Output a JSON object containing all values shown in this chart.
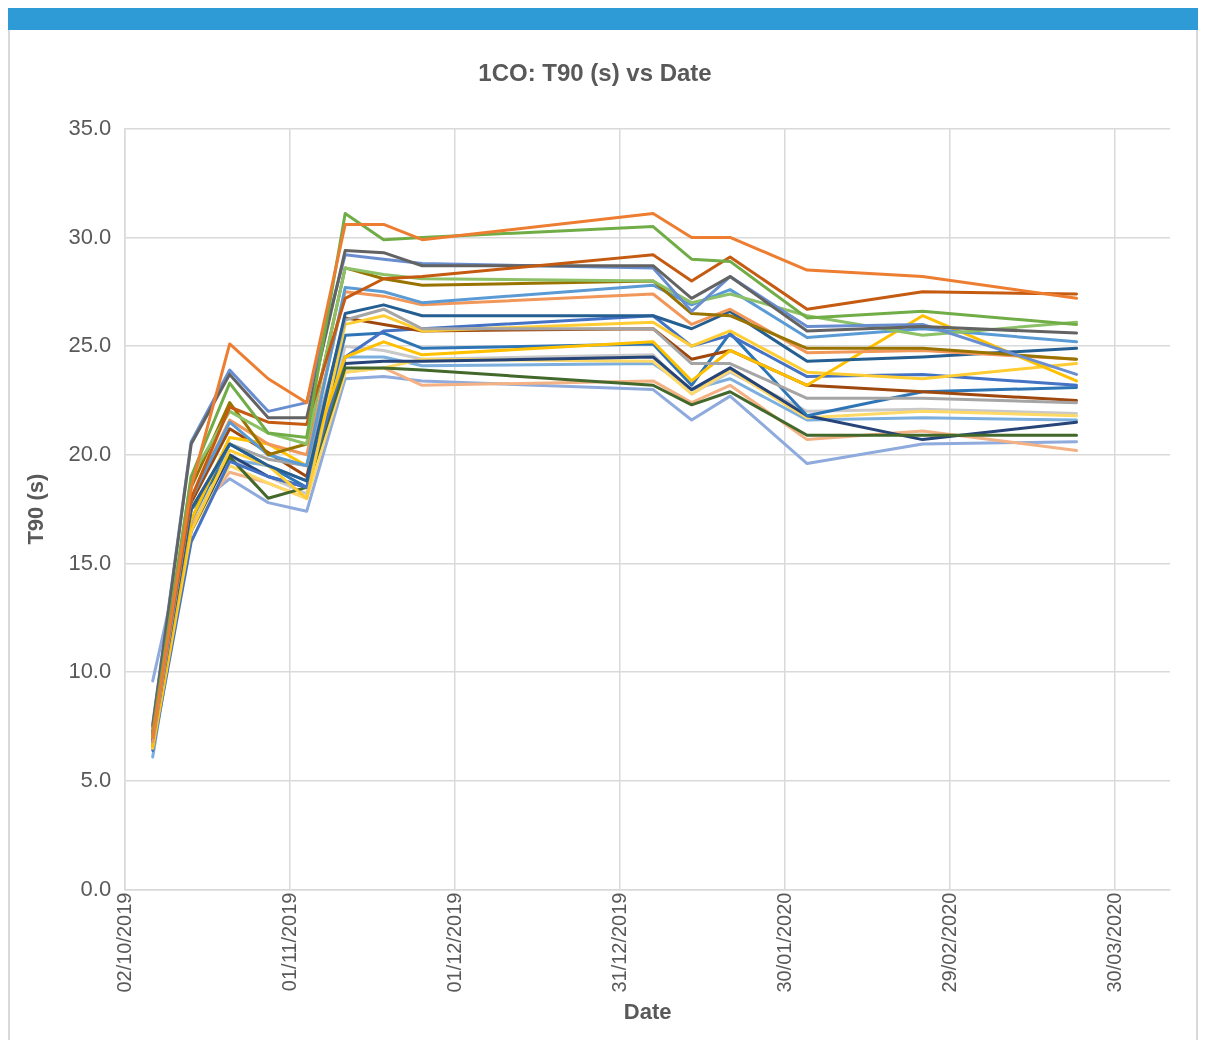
{
  "chart_data": {
    "type": "line",
    "title": "1CO: T90 (s) vs Date",
    "xlabel": "Date",
    "ylabel": "T90 (s)",
    "x": [
      "2019-10-07",
      "2019-10-14",
      "2019-10-21",
      "2019-10-28",
      "2019-11-04",
      "2019-11-11",
      "2019-11-18",
      "2019-11-25",
      "2020-01-06",
      "2020-01-13",
      "2020-01-20",
      "2020-02-03",
      "2020-02-24",
      "2020-03-23"
    ],
    "xlim": [
      "2019-10-02",
      "2020-04-09"
    ],
    "xticks": [
      {
        "value": "2019-10-02",
        "label": "02/10/2019"
      },
      {
        "value": "2019-11-01",
        "label": "01/11/2019"
      },
      {
        "value": "2019-12-01",
        "label": "01/12/2019"
      },
      {
        "value": "2019-12-31",
        "label": "31/12/2019"
      },
      {
        "value": "2020-01-30",
        "label": "30/01/2020"
      },
      {
        "value": "2020-02-29",
        "label": "29/02/2020"
      },
      {
        "value": "2020-03-30",
        "label": "30/03/2020"
      }
    ],
    "ylim": [
      0,
      35
    ],
    "yticks": [
      {
        "value": 0,
        "label": "0.0"
      },
      {
        "value": 5,
        "label": "5.0"
      },
      {
        "value": 10,
        "label": "10.0"
      },
      {
        "value": 15,
        "label": "15.0"
      },
      {
        "value": 20,
        "label": "20.0"
      },
      {
        "value": 25,
        "label": "25.0"
      },
      {
        "value": 30,
        "label": "30.0"
      },
      {
        "value": 35,
        "label": "35.0"
      }
    ],
    "grid": true,
    "legend": false,
    "marker": "none",
    "line_style": "solid",
    "series": [
      {
        "color": "#ed7d31",
        "values": [
          7.0,
          18.5,
          25.1,
          23.5,
          22.4,
          30.6,
          30.6,
          29.9,
          31.1,
          30.0,
          30.0,
          28.5,
          28.2,
          27.2
        ]
      },
      {
        "color": "#70ad47",
        "values": [
          7.2,
          19.0,
          23.3,
          21.0,
          20.8,
          31.1,
          29.9,
          30.0,
          30.5,
          29.0,
          28.9,
          26.3,
          26.6,
          26.0
        ]
      },
      {
        "color": "#c55a11",
        "values": [
          7.3,
          18.0,
          22.2,
          21.5,
          21.4,
          27.2,
          28.1,
          28.2,
          29.2,
          28.0,
          29.1,
          26.7,
          27.5,
          27.4
        ]
      },
      {
        "color": "#636363",
        "values": [
          7.5,
          20.5,
          23.7,
          21.7,
          21.7,
          29.4,
          29.3,
          28.7,
          28.7,
          27.2,
          28.2,
          25.7,
          25.9,
          25.6
        ]
      },
      {
        "color": "#698ed0",
        "values": [
          7.6,
          20.6,
          23.9,
          22.0,
          22.4,
          29.2,
          29.0,
          28.8,
          28.6,
          26.6,
          28.2,
          25.9,
          26.0,
          23.7
        ]
      },
      {
        "color": "#8cc168",
        "values": [
          7.0,
          19.0,
          22.0,
          21.0,
          20.5,
          28.6,
          28.3,
          28.1,
          28.0,
          27.0,
          27.4,
          26.4,
          25.5,
          26.1
        ]
      },
      {
        "color": "#997300",
        "values": [
          7.2,
          18.5,
          22.4,
          20.0,
          20.5,
          28.6,
          28.1,
          27.8,
          28.0,
          26.5,
          26.4,
          24.9,
          24.9,
          24.4
        ]
      },
      {
        "color": "#5b9bd5",
        "values": [
          7.0,
          18.0,
          21.5,
          20.0,
          19.5,
          27.7,
          27.5,
          27.0,
          27.8,
          26.9,
          27.6,
          25.4,
          25.8,
          25.2
        ]
      },
      {
        "color": "#f1975a",
        "values": [
          6.8,
          18.0,
          21.6,
          20.5,
          20.0,
          27.5,
          27.3,
          26.9,
          27.4,
          26.0,
          26.7,
          24.7,
          24.8,
          24.4
        ]
      },
      {
        "color": "#255e91",
        "values": [
          6.9,
          17.5,
          20.5,
          19.5,
          18.8,
          26.5,
          26.9,
          26.4,
          26.4,
          25.8,
          26.6,
          24.3,
          24.5,
          24.9
        ]
      },
      {
        "color": "#a5a5a5",
        "values": [
          7.0,
          17.5,
          20.5,
          19.8,
          19.5,
          26.2,
          26.7,
          25.8,
          25.8,
          24.2,
          24.2,
          22.6,
          22.6,
          22.4
        ]
      },
      {
        "color": "#ffc000",
        "values": [
          6.6,
          17.0,
          20.8,
          20.5,
          19.5,
          24.5,
          25.2,
          24.6,
          25.2,
          23.4,
          24.8,
          23.2,
          26.4,
          23.4
        ]
      },
      {
        "color": "#ffcd33",
        "values": [
          6.5,
          16.5,
          20.2,
          19.5,
          18.0,
          26.0,
          26.4,
          25.7,
          26.1,
          25.0,
          25.7,
          23.8,
          23.5,
          24.2
        ]
      },
      {
        "color": "#9e480e",
        "values": [
          7.1,
          17.8,
          21.2,
          20.1,
          19.0,
          26.3,
          26.0,
          25.7,
          25.8,
          24.4,
          24.8,
          23.2,
          22.9,
          22.5
        ]
      },
      {
        "color": "#4472c4",
        "values": [
          6.4,
          16.0,
          19.7,
          19.0,
          18.5,
          24.5,
          25.7,
          25.8,
          26.4,
          25.0,
          25.5,
          23.6,
          23.7,
          23.2
        ]
      },
      {
        "color": "#2e75b6",
        "values": [
          6.6,
          17.0,
          20.5,
          19.5,
          18.5,
          25.5,
          25.6,
          24.9,
          25.1,
          23.2,
          25.6,
          21.8,
          22.9,
          23.1
        ]
      },
      {
        "color": "#43682b",
        "values": [
          7.0,
          17.5,
          19.9,
          18.0,
          18.5,
          24.0,
          24.0,
          23.9,
          23.2,
          22.3,
          22.9,
          20.9,
          20.9,
          20.9
        ]
      },
      {
        "color": "#264478",
        "values": [
          6.8,
          16.5,
          20.0,
          19.0,
          18.5,
          24.2,
          24.3,
          24.3,
          24.5,
          23.0,
          24.0,
          21.8,
          20.7,
          21.5
        ]
      },
      {
        "color": "#ffd966",
        "values": [
          6.5,
          16.5,
          19.5,
          18.7,
          18.0,
          23.8,
          24.0,
          24.4,
          24.3,
          22.8,
          23.9,
          21.7,
          22.0,
          21.8
        ]
      },
      {
        "color": "#c9c9c9",
        "values": [
          6.9,
          17.0,
          19.8,
          19.0,
          18.2,
          25.0,
          24.8,
          24.4,
          24.6,
          22.8,
          23.8,
          22.0,
          22.1,
          21.9
        ]
      },
      {
        "color": "#f4b183",
        "values": [
          6.6,
          16.8,
          19.2,
          18.7,
          18.0,
          23.8,
          24.0,
          23.2,
          23.4,
          22.4,
          23.2,
          20.7,
          21.1,
          20.2
        ]
      },
      {
        "color": "#8faadc",
        "values": [
          9.6,
          17.5,
          18.9,
          17.8,
          17.4,
          23.5,
          23.6,
          23.4,
          23.0,
          21.6,
          22.7,
          19.6,
          20.5,
          20.6
        ]
      },
      {
        "color": "#7cafdd",
        "values": [
          6.1,
          17.0,
          19.8,
          19.5,
          18.8,
          24.5,
          24.5,
          24.1,
          24.2,
          23.0,
          23.5,
          21.6,
          21.7,
          21.6
        ]
      }
    ]
  }
}
